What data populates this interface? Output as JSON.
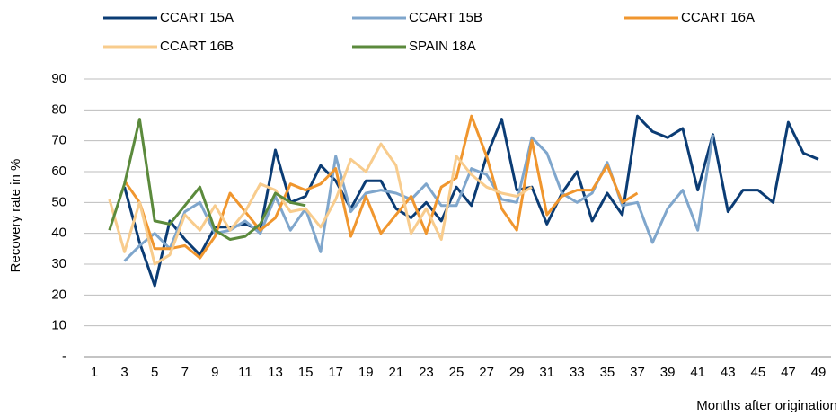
{
  "chart_data": {
    "type": "line",
    "y_label": "Recovery rate in %",
    "x_label": "Months after origination",
    "categories": [
      1,
      null,
      3,
      null,
      5,
      null,
      7,
      null,
      9,
      null,
      11,
      null,
      13,
      null,
      15,
      null,
      17,
      null,
      19,
      null,
      21,
      null,
      23,
      null,
      25,
      null,
      27,
      null,
      29,
      null,
      31,
      null,
      33,
      null,
      35,
      null,
      37,
      null,
      39,
      null,
      41,
      null,
      43,
      null,
      45,
      null,
      47,
      null,
      49
    ],
    "series": [
      {
        "name": "CCART 15A",
        "color": "#0b3c74",
        "values": [
          null,
          null,
          55,
          37,
          23,
          44,
          38,
          33,
          42,
          42,
          43,
          41,
          67,
          50,
          52,
          62,
          57,
          48,
          57,
          57,
          48,
          45,
          50,
          44,
          55,
          49,
          65,
          77,
          54,
          55,
          43,
          53,
          60,
          44,
          53,
          46,
          78,
          73,
          71,
          74,
          54,
          72,
          47,
          54,
          54,
          50,
          76,
          66,
          64
        ]
      },
      {
        "name": "CCART 15B",
        "color": "#7fa6cc",
        "values": [
          null,
          null,
          31,
          36,
          40,
          35,
          47,
          50,
          40,
          41,
          44,
          40,
          52,
          41,
          48,
          34,
          65,
          47,
          53,
          54,
          53,
          51,
          56,
          49,
          49,
          61,
          59,
          51,
          50,
          71,
          66,
          53,
          50,
          53,
          63,
          49,
          50,
          37,
          48,
          54,
          41,
          72,
          null,
          null,
          null,
          null,
          null,
          null,
          null
        ]
      },
      {
        "name": "CCART 16A",
        "color": "#f0962e",
        "values": [
          null,
          null,
          57,
          50,
          35,
          35,
          36,
          32,
          39,
          53,
          47,
          41,
          45,
          56,
          54,
          56,
          61,
          39,
          52,
          40,
          46,
          52,
          40,
          55,
          58,
          78,
          65,
          48,
          41,
          70,
          46,
          52,
          54,
          54,
          62,
          50,
          53,
          null,
          null,
          null,
          null,
          null,
          null,
          null,
          null,
          null,
          null,
          null,
          null
        ]
      },
      {
        "name": "CCART 16B",
        "color": "#f8cc8d",
        "values": [
          null,
          51,
          34,
          50,
          30,
          33,
          46,
          41,
          49,
          41,
          47,
          56,
          54,
          47,
          48,
          42,
          51,
          64,
          60,
          69,
          62,
          40,
          48,
          38,
          65,
          59,
          55,
          53,
          52,
          55,
          null,
          null,
          null,
          null,
          null,
          null,
          null,
          null,
          null,
          null,
          null,
          null,
          null,
          null,
          null,
          null,
          null,
          null,
          null
        ]
      },
      {
        "name": "SPAIN 18A",
        "color": "#5b8a3c",
        "values": [
          null,
          41,
          56,
          77,
          44,
          43,
          49,
          55,
          41,
          38,
          39,
          43,
          53,
          50,
          49,
          null,
          null,
          null,
          null,
          null,
          null,
          null,
          null,
          null,
          null,
          null,
          null,
          null,
          null,
          null,
          null,
          null,
          null,
          null,
          null,
          null,
          null,
          null,
          null,
          null,
          null,
          null,
          null,
          null,
          null,
          null,
          null,
          null,
          null
        ]
      }
    ],
    "ylim": [
      0,
      90
    ],
    "yticks": [
      {
        "value": 0,
        "label": "-"
      },
      10,
      20,
      30,
      40,
      50,
      60,
      70,
      80,
      90
    ],
    "grid": true,
    "legend": "top"
  }
}
